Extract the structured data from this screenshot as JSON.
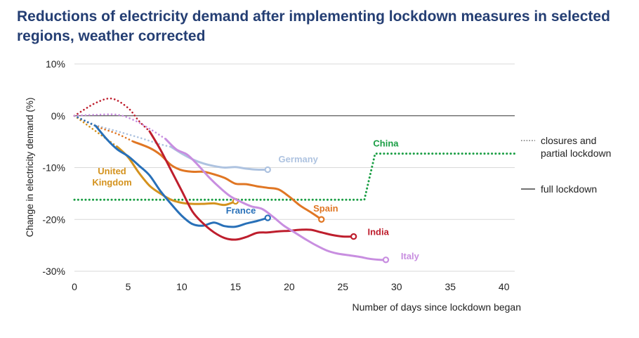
{
  "chart_data": {
    "type": "line",
    "title": "Reductions of electricity demand after implementing lockdown measures in selected regions, weather corrected",
    "xlabel": "Number of days since lockdown began",
    "ylabel": "Change in electricity demand (%)",
    "xlim": [
      0,
      41
    ],
    "ylim": [
      -30,
      10
    ],
    "xticks": [
      0,
      5,
      10,
      15,
      20,
      25,
      30,
      35,
      40
    ],
    "yticks": [
      10,
      0,
      -10,
      -20,
      -30
    ],
    "yticks_labels": [
      "10%",
      "0%",
      "-10%",
      "-20%",
      "-30%"
    ],
    "grid": true,
    "legend_placement": "right",
    "legend": {
      "partial_label": "closures and partial lockdown",
      "full_label": "full lockdown"
    },
    "series": [
      {
        "name": "Germany",
        "color": "#aec3e0",
        "segments": [
          {
            "style": "dotted",
            "x": [
              0,
              2,
              4,
              6,
              8,
              9
            ],
            "y": [
              0,
              -1.8,
              -3,
              -4.2,
              -5.5,
              -6
            ]
          },
          {
            "style": "solid",
            "x": [
              9,
              10,
              11,
              12,
              13,
              14,
              15,
              16,
              17,
              18
            ],
            "y": [
              -6,
              -7.3,
              -8.4,
              -9.2,
              -9.7,
              -10,
              -9.9,
              -10.2,
              -10.4,
              -10.4
            ]
          }
        ]
      },
      {
        "name": "United Kingdom",
        "color": "#d4921d",
        "segments": [
          {
            "style": "dotted",
            "x": [
              0,
              1,
              2,
              3,
              4
            ],
            "y": [
              0,
              -1.5,
              -3,
              -4.5,
              -6
            ]
          },
          {
            "style": "solid",
            "x": [
              4,
              5,
              6,
              7,
              8,
              9,
              10,
              11,
              12,
              13,
              14,
              15
            ],
            "y": [
              -6,
              -8,
              -11,
              -13.5,
              -15,
              -16.2,
              -16.8,
              -17,
              -17,
              -16.9,
              -17.2,
              -16.5
            ]
          }
        ]
      },
      {
        "name": "Spain",
        "color": "#e07623",
        "segments": [
          {
            "style": "dotted",
            "x": [
              0,
              2,
              4,
              5.5
            ],
            "y": [
              0,
              -2,
              -3.5,
              -5
            ]
          },
          {
            "style": "solid",
            "x": [
              5.5,
              7,
              8,
              9,
              10,
              11,
              12,
              13,
              14,
              15,
              16,
              17,
              18,
              19,
              20,
              21,
              22,
              23
            ],
            "y": [
              -5,
              -6.2,
              -7.5,
              -9.5,
              -10.5,
              -10.8,
              -10.8,
              -11.3,
              -12,
              -13.1,
              -13.2,
              -13.6,
              -13.9,
              -14.2,
              -15.6,
              -17.3,
              -18.6,
              -20
            ]
          }
        ]
      },
      {
        "name": "France",
        "color": "#2870b8",
        "segments": [
          {
            "style": "dotted",
            "x": [
              0,
              1,
              2
            ],
            "y": [
              0,
              -1,
              -2
            ]
          },
          {
            "style": "solid",
            "x": [
              2,
              3,
              4,
              5,
              6,
              7,
              8,
              9,
              10,
              11,
              12,
              13,
              14,
              15,
              16,
              17,
              18
            ],
            "y": [
              -2,
              -4.5,
              -6.5,
              -7.8,
              -9.6,
              -11.5,
              -14.5,
              -17,
              -19.3,
              -20.9,
              -21.2,
              -20.6,
              -21.3,
              -21.4,
              -20.8,
              -20.3,
              -19.7
            ]
          }
        ]
      },
      {
        "name": "India",
        "color": "#be1e2d",
        "segments": [
          {
            "style": "dotted",
            "x": [
              0,
              2,
              3.5,
              5,
              6,
              7
            ],
            "y": [
              0,
              2.5,
              3.3,
              1.5,
              -1,
              -3
            ]
          },
          {
            "style": "solid",
            "x": [
              7,
              8,
              9,
              10,
              11,
              12,
              13,
              14,
              15,
              16,
              17,
              18,
              19,
              20,
              21,
              22,
              23,
              24,
              25,
              26
            ],
            "y": [
              -3,
              -6.5,
              -10.5,
              -14.5,
              -18.5,
              -20.8,
              -22.5,
              -23.6,
              -23.9,
              -23.4,
              -22.6,
              -22.5,
              -22.3,
              -22.2,
              -22,
              -22,
              -22.5,
              -23,
              -23.3,
              -23.3
            ]
          }
        ]
      },
      {
        "name": "Italy",
        "color": "#c88ee0",
        "segments": [
          {
            "style": "dotted",
            "x": [
              0,
              2,
              4,
              5.5,
              7,
              8.5
            ],
            "y": [
              0,
              0.2,
              0.2,
              -0.8,
              -2.5,
              -4.5
            ]
          },
          {
            "style": "solid",
            "x": [
              8.5,
              9.5,
              10.5,
              11.5,
              12.5,
              13.5,
              14.5,
              15.5,
              16.5,
              17.5,
              18.5,
              19.5,
              20.5,
              21.5,
              22.5,
              23.5,
              24.5,
              25.5,
              26.5,
              27.5,
              28.5,
              29
            ],
            "y": [
              -4.5,
              -6.5,
              -7.5,
              -9.5,
              -11.8,
              -13.8,
              -15.5,
              -16.6,
              -17.5,
              -18,
              -19.5,
              -21.2,
              -22.5,
              -23.8,
              -25,
              -26,
              -26.6,
              -26.9,
              -27.2,
              -27.6,
              -27.8,
              -27.8
            ]
          }
        ]
      },
      {
        "name": "China",
        "color": "#1a9e44",
        "segments": [
          {
            "style": "dotted",
            "x": [
              0,
              27,
              28,
              41
            ],
            "y": [
              -16.2,
              -16.2,
              -7.3,
              -7.3
            ]
          }
        ]
      }
    ]
  }
}
